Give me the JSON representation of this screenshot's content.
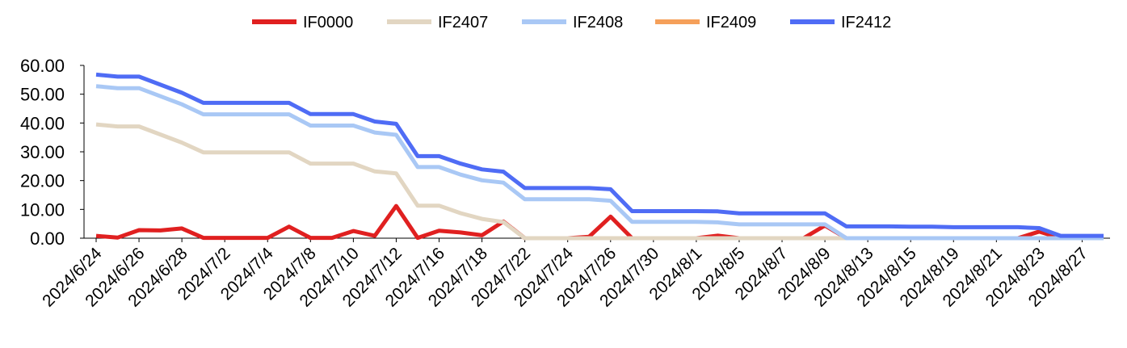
{
  "colors": {
    "IF0000": "#E02020",
    "IF2407": "#E2D6C2",
    "IF2408": "#A9C8F5",
    "IF2409": "#F5A05A",
    "IF2412": "#4F6CF5"
  },
  "chart_data": {
    "type": "line",
    "title": "",
    "xlabel": "",
    "ylabel": "",
    "ylim": [
      0,
      60
    ],
    "yticks": [
      "60.00",
      "50.00",
      "40.00",
      "30.00",
      "20.00",
      "10.00",
      "0.00"
    ],
    "grid": false,
    "legend_position": "top",
    "x": [
      "2024/6/24",
      "2024/6/25",
      "2024/6/26",
      "2024/6/27",
      "2024/6/28",
      "2024/7/1",
      "2024/7/2",
      "2024/7/3",
      "2024/7/4",
      "2024/7/5",
      "2024/7/8",
      "2024/7/9",
      "2024/7/10",
      "2024/7/11",
      "2024/7/12",
      "2024/7/15",
      "2024/7/16",
      "2024/7/17",
      "2024/7/18",
      "2024/7/19",
      "2024/7/22",
      "2024/7/23",
      "2024/7/24",
      "2024/7/25",
      "2024/7/26",
      "2024/7/29",
      "2024/7/30",
      "2024/7/31",
      "2024/8/1",
      "2024/8/2",
      "2024/8/5",
      "2024/8/6",
      "2024/8/7",
      "2024/8/8",
      "2024/8/9",
      "2024/8/12",
      "2024/8/13",
      "2024/8/14",
      "2024/8/15",
      "2024/8/16",
      "2024/8/19",
      "2024/8/20",
      "2024/8/21",
      "2024/8/22",
      "2024/8/23",
      "2024/8/26",
      "2024/8/27",
      "2024/8/28"
    ],
    "xtick_labels": [
      "2024/6/24",
      "2024/6/26",
      "2024/6/28",
      "2024/7/2",
      "2024/7/4",
      "2024/7/8",
      "2024/7/10",
      "2024/7/12",
      "2024/7/16",
      "2024/7/18",
      "2024/7/22",
      "2024/7/24",
      "2024/7/26",
      "2024/7/30",
      "2024/8/1",
      "2024/8/5",
      "2024/8/7",
      "2024/8/9",
      "2024/8/13",
      "2024/8/15",
      "2024/8/19",
      "2024/8/21",
      "2024/8/23",
      "2024/8/27"
    ],
    "series": [
      {
        "name": "IF0000",
        "values": [
          0.8,
          0.2,
          2.8,
          2.7,
          3.4,
          0.1,
          0.1,
          0.1,
          0.1,
          4.0,
          0.1,
          0.1,
          2.5,
          0.8,
          11.2,
          0.1,
          2.6,
          2.0,
          1.0,
          5.8,
          0,
          0,
          0,
          0.5,
          7.5,
          0,
          0,
          0,
          0,
          0.9,
          0,
          0,
          0,
          0,
          4.4,
          0,
          0,
          0,
          0,
          0,
          0,
          0,
          0,
          0,
          2.3,
          0,
          0,
          0
        ]
      },
      {
        "name": "IF2407",
        "values": [
          39.5,
          38.8,
          38.8,
          36.0,
          33.2,
          29.8,
          29.8,
          29.8,
          29.8,
          29.8,
          25.9,
          25.9,
          25.9,
          23.2,
          22.5,
          11.3,
          11.3,
          8.7,
          6.7,
          5.6,
          0,
          0,
          0,
          0,
          0,
          0,
          0,
          0,
          0,
          0,
          0,
          0,
          0,
          0,
          0,
          0,
          0,
          0,
          0,
          0,
          0,
          0,
          0,
          0,
          0,
          0,
          0,
          0
        ]
      },
      {
        "name": "IF2408",
        "values": [
          52.8,
          52.1,
          52.1,
          49.3,
          46.5,
          43.0,
          43.0,
          43.0,
          43.0,
          43.0,
          39.1,
          39.1,
          39.1,
          36.7,
          35.9,
          24.7,
          24.7,
          22.1,
          20.1,
          19.3,
          13.5,
          13.5,
          13.5,
          13.5,
          13.0,
          5.7,
          5.7,
          5.7,
          5.7,
          5.5,
          4.8,
          4.8,
          4.8,
          4.8,
          4.8,
          0,
          0,
          0,
          0,
          0,
          0,
          0,
          0,
          0,
          0,
          0,
          0,
          0
        ]
      },
      {
        "name": "IF2409",
        "values": [
          null,
          null,
          null,
          null,
          null,
          null,
          null,
          null,
          null,
          null,
          null,
          null,
          null,
          null,
          null,
          null,
          null,
          null,
          null,
          null,
          null,
          null,
          null,
          null,
          null,
          null,
          null,
          null,
          null,
          null,
          null,
          null,
          null,
          null,
          null,
          null,
          null,
          null,
          null,
          null,
          null,
          null,
          null,
          null,
          null,
          null,
          null,
          null
        ]
      },
      {
        "name": "IF2412",
        "values": [
          56.8,
          56.1,
          56.1,
          53.3,
          50.5,
          47.0,
          47.0,
          47.0,
          47.0,
          47.0,
          43.1,
          43.1,
          43.1,
          40.5,
          39.7,
          28.5,
          28.5,
          25.9,
          23.9,
          23.1,
          17.4,
          17.4,
          17.4,
          17.4,
          17.0,
          9.4,
          9.4,
          9.4,
          9.4,
          9.3,
          8.6,
          8.6,
          8.6,
          8.6,
          8.6,
          4.1,
          4.1,
          4.1,
          4.0,
          4.0,
          3.8,
          3.8,
          3.8,
          3.8,
          3.5,
          0.8,
          0.8,
          0.8
        ]
      }
    ]
  }
}
